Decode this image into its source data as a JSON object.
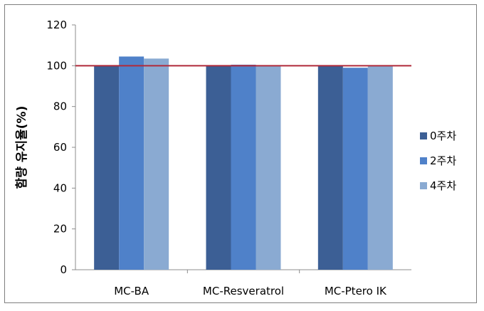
{
  "chart_data": {
    "type": "bar",
    "categories": [
      "MC-BA",
      "MC-Resveratrol",
      "MC-Ptero IK"
    ],
    "series": [
      {
        "name": "0주차",
        "values": [
          100,
          100,
          100
        ],
        "color": "#3c5f95"
      },
      {
        "name": "2주차",
        "values": [
          104.5,
          100.5,
          99
        ],
        "color": "#4f81c9"
      },
      {
        "name": "4주차",
        "values": [
          103.5,
          100,
          100
        ],
        "color": "#8aaad2"
      }
    ],
    "reference_line": {
      "value": 100,
      "color": "#b02a3a"
    },
    "title": "",
    "xlabel": "",
    "ylabel": "함량 유지율(%)",
    "ylim": [
      0,
      120
    ],
    "yticks": [
      0,
      20,
      40,
      60,
      80,
      100,
      120
    ],
    "grid": false,
    "legend_position": "right"
  }
}
